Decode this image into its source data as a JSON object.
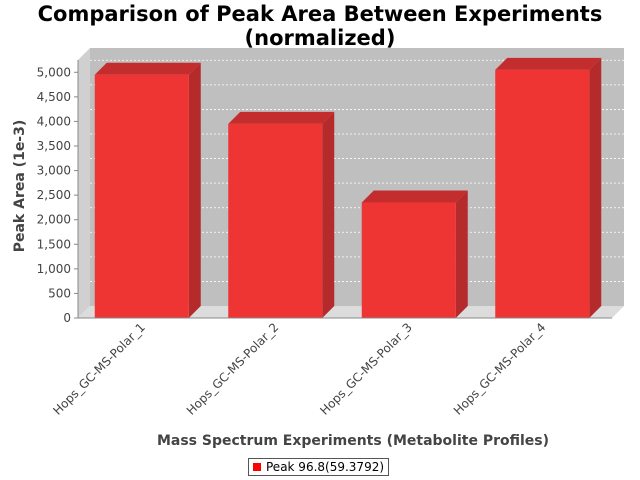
{
  "chart_data": {
    "type": "bar",
    "title_lines": [
      "Comparison of Peak Area Between Experiments",
      "(normalized)"
    ],
    "xlabel": "Mass Spectrum Experiments (Metabolite Profiles)",
    "ylabel": "Peak Area (1e-3)",
    "categories": [
      "Hops_GC-MS-Polar_1",
      "Hops_GC-MS-Polar_2",
      "Hops_GC-MS-Polar_3",
      "Hops_GC-MS-Polar_4"
    ],
    "series": [
      {
        "name": "Peak 96.8(59.3792)",
        "values": [
          4950,
          3950,
          2350,
          5050
        ]
      }
    ],
    "ylim": [
      0,
      5250
    ],
    "yticks": [
      0,
      500,
      1000,
      1500,
      2000,
      2500,
      3000,
      3500,
      4000,
      4500,
      5000
    ],
    "ytick_labels": [
      "0",
      "500",
      "1,000",
      "1,500",
      "2,000",
      "2,500",
      "3,000",
      "3,500",
      "4,000",
      "4,500",
      "5,000"
    ],
    "grid": true,
    "legend_position": "bottom",
    "colors": {
      "bar_front": "#ef3434",
      "bar_side": "#b52a2a",
      "bar_top": "#c42d2d",
      "plot_back": "#bfbfbf",
      "plot_floor": "#dcdcdc",
      "legend_swatch": "#ff0000"
    }
  }
}
